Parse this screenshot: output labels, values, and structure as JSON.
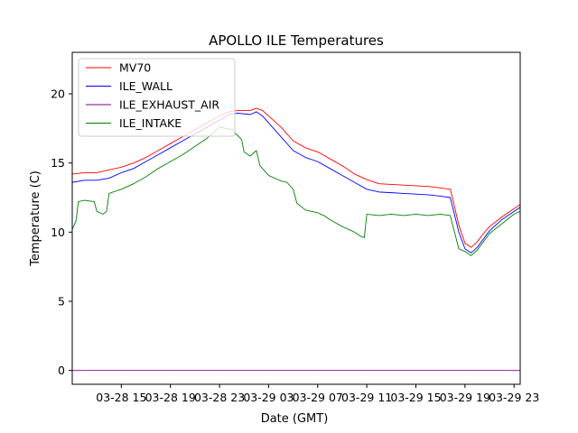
{
  "chart_data": {
    "type": "line",
    "title": "APOLLO ILE Temperatures",
    "xlabel": "Date (GMT)",
    "ylabel": "Temperature (C)",
    "x_unit": "hours since 03-28 11:00 GMT",
    "xlim": [
      0,
      36.5
    ],
    "ylim": [
      -1,
      23
    ],
    "x_ticks": [
      {
        "value": 4,
        "label": "03-28 15"
      },
      {
        "value": 8,
        "label": "03-28 19"
      },
      {
        "value": 12,
        "label": "03-28 23"
      },
      {
        "value": 16,
        "label": "03-29 03"
      },
      {
        "value": 20,
        "label": "03-29 07"
      },
      {
        "value": 24,
        "label": "03-29 11"
      },
      {
        "value": 28,
        "label": "03-29 15"
      },
      {
        "value": 32,
        "label": "03-29 19"
      },
      {
        "value": 36,
        "label": "03-29 23"
      }
    ],
    "y_ticks": [
      0,
      5,
      10,
      15,
      20
    ],
    "legend_position": "top-left",
    "series": [
      {
        "name": "MV70",
        "color": "#ff0000",
        "points": [
          [
            0,
            14.2
          ],
          [
            1,
            14.3
          ],
          [
            2,
            14.3
          ],
          [
            3,
            14.5
          ],
          [
            4,
            14.7
          ],
          [
            5,
            15.0
          ],
          [
            6,
            15.4
          ],
          [
            7,
            15.9
          ],
          [
            8,
            16.4
          ],
          [
            9,
            16.9
          ],
          [
            10,
            17.4
          ],
          [
            11,
            17.9
          ],
          [
            12,
            18.4
          ],
          [
            12.8,
            18.7
          ],
          [
            13.5,
            18.8
          ],
          [
            14.5,
            18.8
          ],
          [
            15,
            18.95
          ],
          [
            15.5,
            18.8
          ],
          [
            16,
            18.4
          ],
          [
            17,
            17.6
          ],
          [
            18,
            16.6
          ],
          [
            19,
            16.1
          ],
          [
            20,
            15.8
          ],
          [
            21,
            15.3
          ],
          [
            22,
            14.8
          ],
          [
            23,
            14.2
          ],
          [
            24,
            13.8
          ],
          [
            25,
            13.5
          ],
          [
            26,
            13.45
          ],
          [
            27,
            13.4
          ],
          [
            28,
            13.35
          ],
          [
            29,
            13.3
          ],
          [
            30,
            13.2
          ],
          [
            30.8,
            13.1
          ],
          [
            31,
            12.4
          ],
          [
            31.5,
            10.5
          ],
          [
            32,
            9.2
          ],
          [
            32.5,
            8.9
          ],
          [
            33,
            9.3
          ],
          [
            33.5,
            9.9
          ],
          [
            34,
            10.4
          ],
          [
            35,
            11.1
          ],
          [
            36,
            11.7
          ],
          [
            36.5,
            12.0
          ]
        ]
      },
      {
        "name": "ILE_WALL",
        "color": "#0000ff",
        "points": [
          [
            0,
            13.6
          ],
          [
            1,
            13.75
          ],
          [
            2,
            13.75
          ],
          [
            3,
            13.9
          ],
          [
            4,
            14.3
          ],
          [
            5,
            14.6
          ],
          [
            6,
            15.1
          ],
          [
            7,
            15.6
          ],
          [
            8,
            16.1
          ],
          [
            9,
            16.6
          ],
          [
            10,
            17.1
          ],
          [
            11,
            17.6
          ],
          [
            12,
            18.1
          ],
          [
            12.8,
            18.5
          ],
          [
            13.5,
            18.6
          ],
          [
            14.5,
            18.5
          ],
          [
            15,
            18.7
          ],
          [
            15.5,
            18.4
          ],
          [
            16,
            17.9
          ],
          [
            17,
            16.9
          ],
          [
            18,
            15.9
          ],
          [
            19,
            15.4
          ],
          [
            20,
            15.1
          ],
          [
            21,
            14.6
          ],
          [
            22,
            14.1
          ],
          [
            23,
            13.6
          ],
          [
            24,
            13.1
          ],
          [
            25,
            12.9
          ],
          [
            26,
            12.85
          ],
          [
            27,
            12.8
          ],
          [
            28,
            12.75
          ],
          [
            29,
            12.7
          ],
          [
            30,
            12.6
          ],
          [
            30.8,
            12.5
          ],
          [
            31,
            11.8
          ],
          [
            31.5,
            10.0
          ],
          [
            32,
            8.8
          ],
          [
            32.5,
            8.5
          ],
          [
            33,
            8.9
          ],
          [
            33.5,
            9.5
          ],
          [
            34,
            10.1
          ],
          [
            35,
            10.9
          ],
          [
            36,
            11.5
          ],
          [
            36.5,
            11.8
          ]
        ]
      },
      {
        "name": "ILE_EXHAUST_AIR",
        "color": "#800080",
        "points": [
          [
            0,
            0
          ],
          [
            36.5,
            0
          ]
        ]
      },
      {
        "name": "ILE_INTAKE",
        "color": "#008000",
        "points": [
          [
            0,
            10.2
          ],
          [
            0.3,
            10.8
          ],
          [
            0.5,
            12.2
          ],
          [
            1,
            12.3
          ],
          [
            1.8,
            12.2
          ],
          [
            2,
            11.5
          ],
          [
            2.5,
            11.3
          ],
          [
            2.8,
            11.5
          ],
          [
            3,
            12.8
          ],
          [
            4,
            13.1
          ],
          [
            5,
            13.5
          ],
          [
            6,
            14.0
          ],
          [
            7,
            14.6
          ],
          [
            8,
            15.1
          ],
          [
            9,
            15.6
          ],
          [
            10,
            16.2
          ],
          [
            11,
            16.8
          ],
          [
            12,
            17.6
          ],
          [
            13,
            17.4
          ],
          [
            13.8,
            16.7
          ],
          [
            14,
            15.8
          ],
          [
            14.5,
            15.5
          ],
          [
            15,
            15.9
          ],
          [
            15.3,
            14.8
          ],
          [
            16,
            14.1
          ],
          [
            17,
            13.7
          ],
          [
            17.5,
            13.6
          ],
          [
            18,
            13.1
          ],
          [
            18.3,
            12.1
          ],
          [
            19,
            11.6
          ],
          [
            20,
            11.4
          ],
          [
            20.5,
            11.2
          ],
          [
            21,
            10.9
          ],
          [
            22,
            10.4
          ],
          [
            23,
            10.0
          ],
          [
            23.5,
            9.7
          ],
          [
            23.8,
            9.6
          ],
          [
            24,
            11.3
          ],
          [
            25,
            11.2
          ],
          [
            26,
            11.3
          ],
          [
            27,
            11.2
          ],
          [
            28,
            11.3
          ],
          [
            29,
            11.2
          ],
          [
            30,
            11.3
          ],
          [
            30.8,
            11.2
          ],
          [
            31,
            10.5
          ],
          [
            31.5,
            8.8
          ],
          [
            32,
            8.6
          ],
          [
            32.5,
            8.3
          ],
          [
            33,
            8.7
          ],
          [
            33.5,
            9.3
          ],
          [
            34,
            9.9
          ],
          [
            35,
            10.6
          ],
          [
            36,
            11.3
          ],
          [
            36.5,
            11.5
          ]
        ]
      }
    ]
  }
}
